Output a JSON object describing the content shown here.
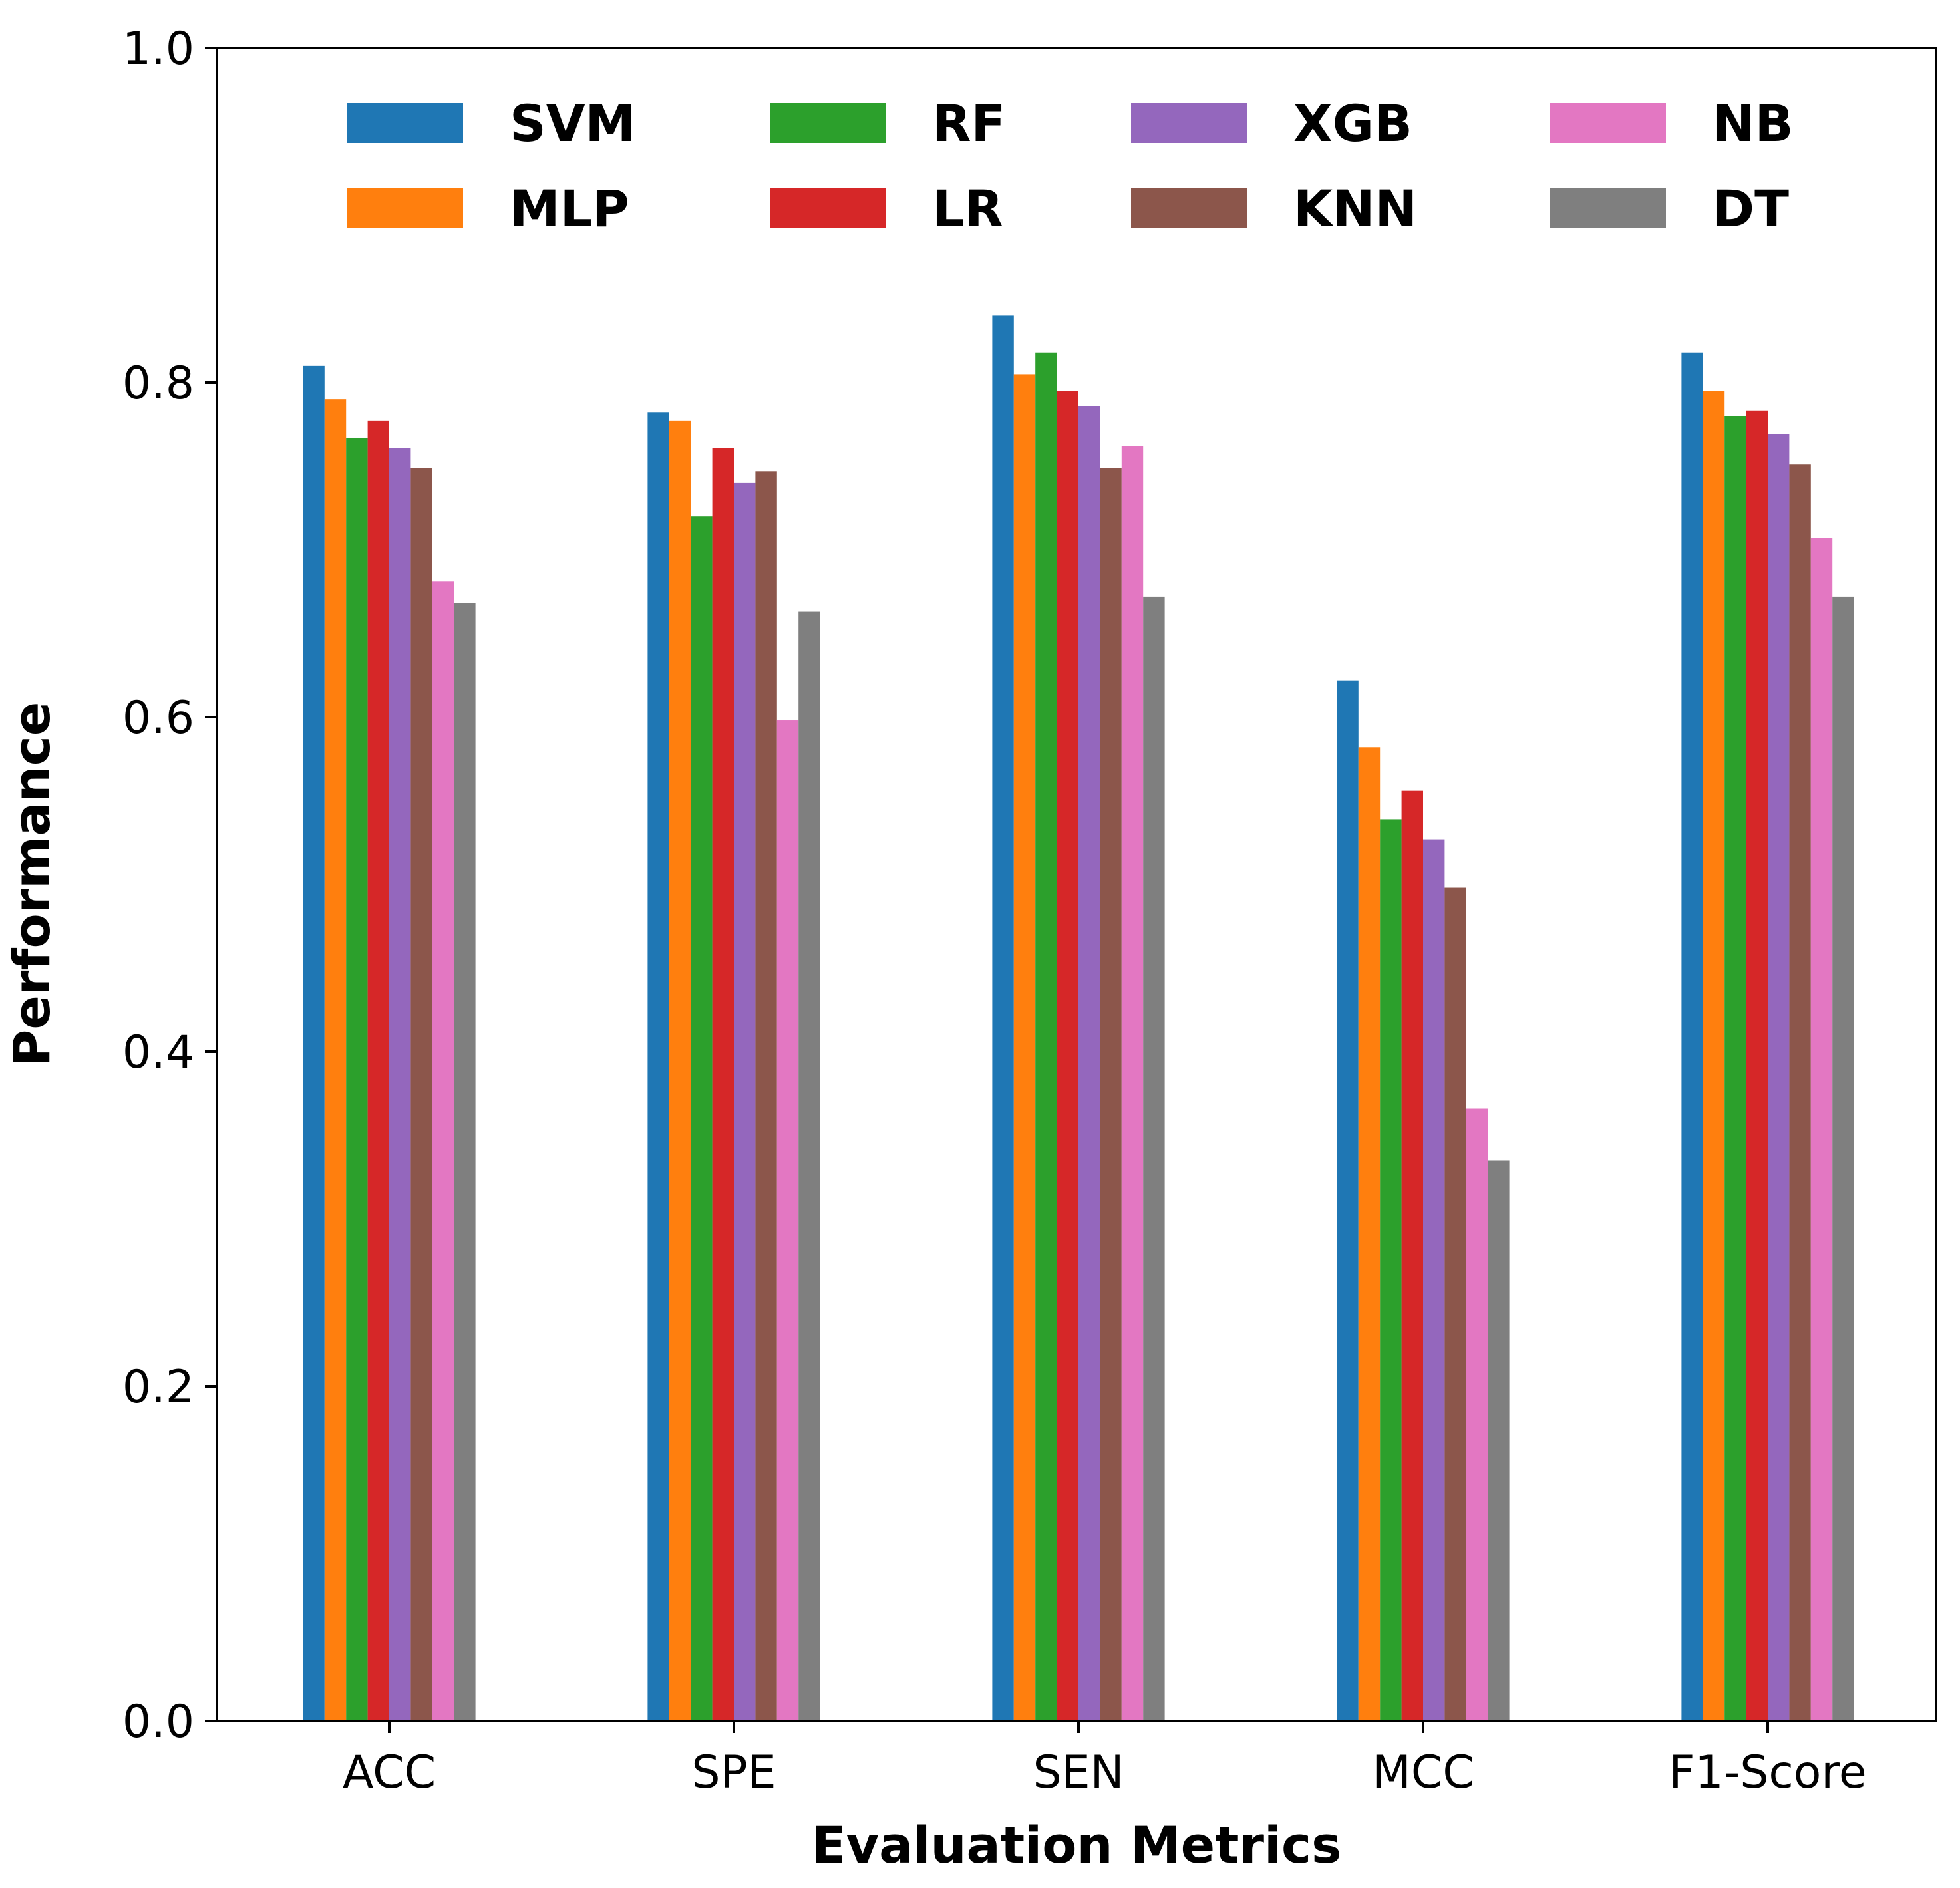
{
  "chart_data": {
    "type": "bar",
    "title": "",
    "xlabel": "Evaluation Metrics",
    "ylabel": "Performance",
    "ylim": [
      0,
      1.0
    ],
    "yticks": [
      "0.0",
      "0.2",
      "0.4",
      "0.6",
      "0.8",
      "1.0"
    ],
    "categories": [
      "ACC",
      "SPE",
      "SEN",
      "MCC",
      "F1-Score"
    ],
    "grid": false,
    "legend_position": "top",
    "series": [
      {
        "name": "SVM",
        "color": "#1f77b4",
        "values": [
          0.81,
          0.782,
          0.84,
          0.622,
          0.818
        ]
      },
      {
        "name": "MLP",
        "color": "#ff7f0e",
        "values": [
          0.79,
          0.777,
          0.805,
          0.582,
          0.795
        ]
      },
      {
        "name": "RF",
        "color": "#2ca02c",
        "values": [
          0.767,
          0.72,
          0.818,
          0.539,
          0.78
        ]
      },
      {
        "name": "LR",
        "color": "#d62728",
        "values": [
          0.777,
          0.761,
          0.795,
          0.556,
          0.783
        ]
      },
      {
        "name": "XGB",
        "color": "#9467bd",
        "values": [
          0.761,
          0.74,
          0.786,
          0.527,
          0.769
        ]
      },
      {
        "name": "KNN",
        "color": "#8c564b",
        "values": [
          0.749,
          0.747,
          0.749,
          0.498,
          0.751
        ]
      },
      {
        "name": "NB",
        "color": "#e377c2",
        "values": [
          0.681,
          0.598,
          0.762,
          0.366,
          0.707
        ]
      },
      {
        "name": "DT",
        "color": "#7f7f7f",
        "values": [
          0.668,
          0.663,
          0.672,
          0.335,
          0.672
        ]
      }
    ]
  }
}
